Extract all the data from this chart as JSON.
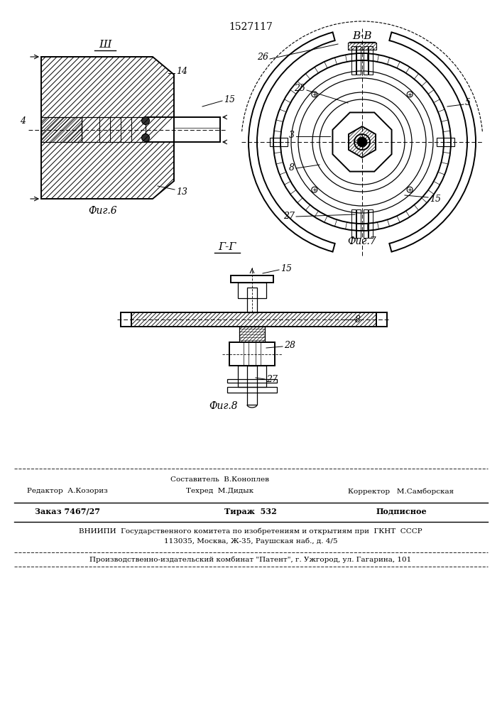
{
  "patent_number": "1527117",
  "fig6_label": "Фиг.6",
  "fig7_label": "Фиг.7",
  "fig8_label": "Фиг.8",
  "bg_color": "#ffffff",
  "line_color": "#000000"
}
